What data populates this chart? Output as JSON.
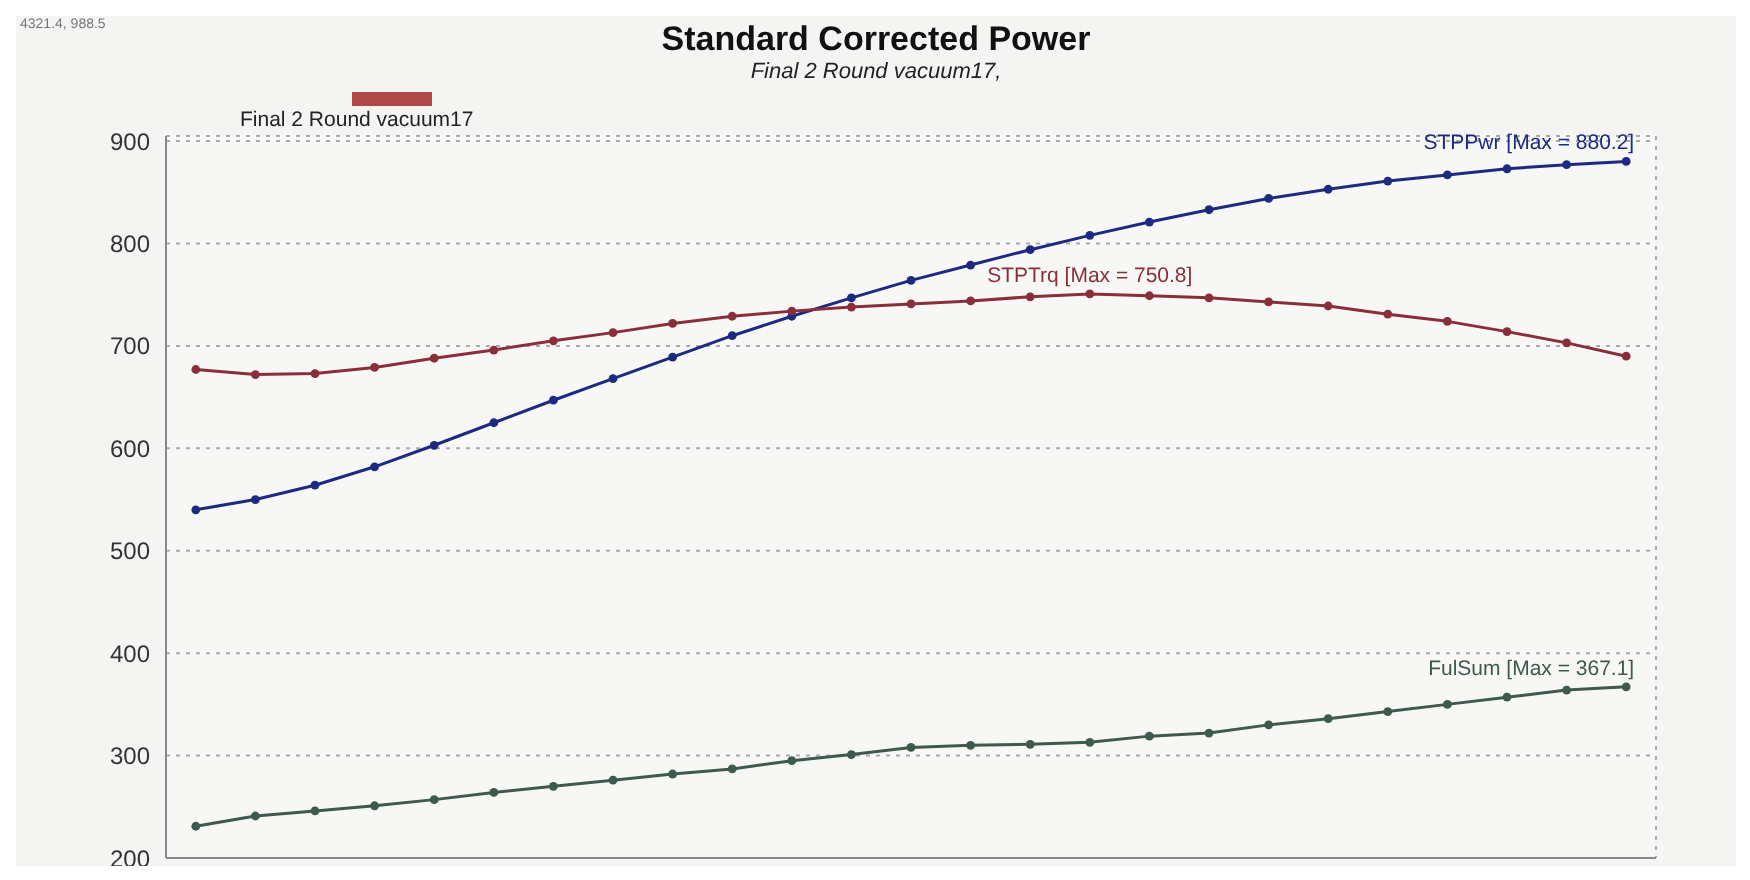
{
  "chart_data": {
    "type": "line",
    "title": "Standard Corrected Power",
    "subtitle": "Final 2 Round vacuum17,",
    "legend_title": "Final 2 Round vacuum17",
    "annotations": [
      "4321.4, 988.5"
    ],
    "categories": [
      null,
      null,
      null,
      null,
      null,
      null,
      null,
      null,
      null,
      null,
      null,
      null,
      null,
      null,
      null,
      null,
      null,
      null,
      null,
      null,
      null,
      null,
      null,
      null,
      null
    ],
    "series": [
      {
        "name": "STPPwr [Max = 880.2]",
        "color": "#1c2a80",
        "values": [
          540,
          550,
          564,
          582,
          603,
          625,
          647,
          668,
          689,
          710,
          729,
          747,
          764,
          779,
          794,
          808,
          821,
          833,
          844,
          853,
          861,
          867,
          873,
          877,
          880.2
        ]
      },
      {
        "name": "STPTrq [Max = 750.8]",
        "color": "#8a2f3a",
        "values": [
          677,
          672,
          673,
          679,
          688,
          696,
          705,
          713,
          722,
          729,
          734,
          738,
          741,
          744,
          748,
          750.8,
          749,
          747,
          743,
          739,
          731,
          724,
          714,
          703,
          690
        ]
      },
      {
        "name": "FulSum [Max = 367.1]",
        "color": "#3d5a4e",
        "values": [
          231,
          241,
          246,
          251,
          257,
          264,
          270,
          276,
          282,
          287,
          295,
          301,
          308,
          310,
          311,
          313,
          319,
          322,
          330,
          336,
          343,
          350,
          357,
          364,
          367.1
        ]
      }
    ],
    "ylim": [
      200,
      905
    ],
    "yticks": [
      200,
      300,
      400,
      500,
      600,
      700,
      800,
      900
    ],
    "grid": true,
    "marker": "circle",
    "line_style": "solid",
    "tick_labels": "y"
  }
}
